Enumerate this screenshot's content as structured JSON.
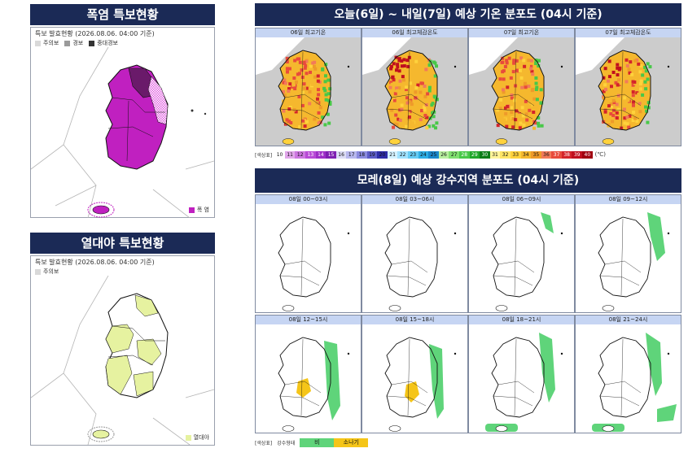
{
  "heat_warning": {
    "title": "폭염 특보현황",
    "issued": "특보 발효현황 (2026.08.06. 04:00 기준)",
    "legend": [
      {
        "label": "주의보",
        "color": "#d9d9d9"
      },
      {
        "label": "경보",
        "color": "#9a9a9a"
      },
      {
        "label": "중대경보",
        "color": "#333333"
      }
    ],
    "corner_legend": {
      "label": "폭 염",
      "color": "#c020c0"
    }
  },
  "tropical_night": {
    "title": "열대야 특보현황",
    "issued": "특보 발효현황 (2026.08.06. 04:00 기준)",
    "legend": [
      {
        "label": "주의보",
        "color": "#d9d9d9"
      }
    ],
    "corner_legend": {
      "label": "열대야",
      "color": "#e6f2a0"
    }
  },
  "temperature": {
    "title": "오늘(6일) ~ 내일(7일) 예상 기온 분포도 (04시 기준)",
    "maps": [
      {
        "label": "06일 최고기온"
      },
      {
        "label": "06일 최고체감온도"
      },
      {
        "label": "07일 최고기온"
      },
      {
        "label": "07일 최고체감온도"
      }
    ],
    "scale_title": "[색상표]",
    "scale_unit": "(℃)",
    "scale": [
      {
        "v": "10",
        "c": "#ffffff"
      },
      {
        "v": "11",
        "c": "#e1a6ea"
      },
      {
        "v": "12",
        "c": "#cd76e0"
      },
      {
        "v": "13",
        "c": "#b84ad6"
      },
      {
        "v": "14",
        "c": "#9e2fc7"
      },
      {
        "v": "15",
        "c": "#7e1fb1"
      },
      {
        "v": "16",
        "c": "#dcdcf5"
      },
      {
        "v": "17",
        "c": "#b8b8ee"
      },
      {
        "v": "18",
        "c": "#8c8ce0"
      },
      {
        "v": "19",
        "c": "#5c5cc8"
      },
      {
        "v": "20",
        "c": "#2c2ca8"
      },
      {
        "v": "21",
        "c": "#d4f2ff"
      },
      {
        "v": "22",
        "c": "#a0e2ff"
      },
      {
        "v": "23",
        "c": "#66ccf5"
      },
      {
        "v": "24",
        "c": "#2eaee6"
      },
      {
        "v": "25",
        "c": "#1a88cc"
      },
      {
        "v": "26",
        "c": "#b8f0a0"
      },
      {
        "v": "27",
        "c": "#80e070"
      },
      {
        "v": "28",
        "c": "#48c848"
      },
      {
        "v": "29",
        "c": "#1fa72a"
      },
      {
        "v": "30",
        "c": "#0a7d17"
      },
      {
        "v": "31",
        "c": "#fff59a"
      },
      {
        "v": "32",
        "c": "#ffe566"
      },
      {
        "v": "33",
        "c": "#ffd23c"
      },
      {
        "v": "34",
        "c": "#f5b82e"
      },
      {
        "v": "35",
        "c": "#ee9a2a"
      },
      {
        "v": "36",
        "c": "#f27a5a"
      },
      {
        "v": "37",
        "c": "#e84b3c"
      },
      {
        "v": "38",
        "c": "#d4242a"
      },
      {
        "v": "39",
        "c": "#c00f1e"
      },
      {
        "v": "40",
        "c": "#a00010"
      }
    ]
  },
  "precip": {
    "title": "모레(8일) 예상 강수지역 분포도 (04시 기준)",
    "maps": [
      {
        "label": "08일 00~03시"
      },
      {
        "label": "08일 03~06시"
      },
      {
        "label": "08일 06~09시"
      },
      {
        "label": "08일 09~12시"
      },
      {
        "label": "08일 12~15시"
      },
      {
        "label": "08일 15~18시"
      },
      {
        "label": "08일 18~21시"
      },
      {
        "label": "08일 21~24시"
      }
    ],
    "legend_title": "[색상표]",
    "legend_sub": "강수형태",
    "legend": [
      {
        "label": "비",
        "color": "#5fd47a"
      },
      {
        "label": "소나기",
        "color": "#f5c518"
      }
    ]
  }
}
